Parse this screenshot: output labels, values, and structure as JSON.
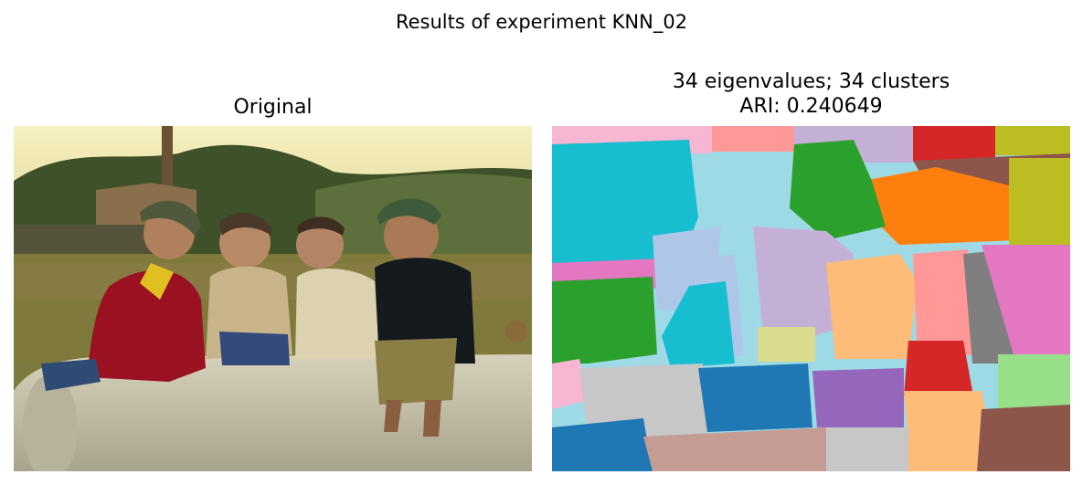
{
  "figure": {
    "suptitle": "Results of experiment KNN_02"
  },
  "panels": [
    {
      "title": "Original",
      "image": "photo of four young children sitting on a large concrete pipe in a rural village"
    },
    {
      "title_line1": "34 eigenvalues; 34 clusters",
      "title_line2": "ARI: 0.240649",
      "image": "spectral clustering segmentation map",
      "colors": [
        "#1fb4c9",
        "#9edae5",
        "#aec7e8",
        "#2ca02c",
        "#ff7f0e",
        "#d62728",
        "#8c564b",
        "#e377c2",
        "#7f7f7f",
        "#bcbd22",
        "#17becf",
        "#9467bd",
        "#c5b0d5",
        "#f7b6d2",
        "#ff9896",
        "#ffbb78",
        "#c49c94",
        "#dbdb8d",
        "#98df8a",
        "#1f77b4",
        "#c7c7c7"
      ]
    }
  ]
}
